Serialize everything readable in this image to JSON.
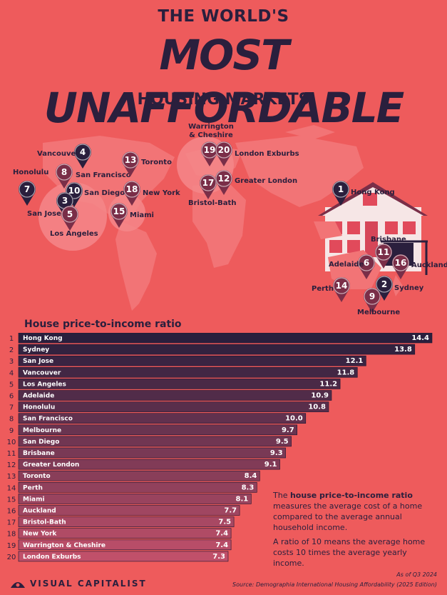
{
  "header": {
    "line1": "THE WORLD'S",
    "line2": "MOST UNAFFORDABLE",
    "line3": "HOUSING MARKETS"
  },
  "map_pins": [
    {
      "rank": "4",
      "label": "Vancouver"
    },
    {
      "rank": "8",
      "label": "San Francisco"
    },
    {
      "rank": "7",
      "label": "Honolulu"
    },
    {
      "rank": "10",
      "label": "San Diego"
    },
    {
      "rank": "3",
      "label": "San Jose"
    },
    {
      "rank": "5",
      "label": "Los Angeles"
    },
    {
      "rank": "13",
      "label": "Toronto"
    },
    {
      "rank": "18",
      "label": "New York"
    },
    {
      "rank": "15",
      "label": "Miami"
    },
    {
      "rank": "19",
      "label": "Warrington & Cheshire"
    },
    {
      "rank": "20",
      "label": "London Exburbs"
    },
    {
      "rank": "17",
      "label": "Bristol-Bath"
    },
    {
      "rank": "12",
      "label": "Greater London"
    },
    {
      "rank": "1",
      "label": "Hong Kong"
    },
    {
      "rank": "11",
      "label": "Brisbane"
    },
    {
      "rank": "6",
      "label": "Adelaide"
    },
    {
      "rank": "16",
      "label": "Auckland"
    },
    {
      "rank": "14",
      "label": "Perth"
    },
    {
      "rank": "2",
      "label": "Sydney"
    },
    {
      "rank": "9",
      "label": "Melbourne"
    }
  ],
  "chart_data": {
    "type": "bar",
    "orientation": "horizontal",
    "title": "House price-to-income ratio",
    "categories": [
      "Hong Kong",
      "Sydney",
      "San Jose",
      "Vancouver",
      "Los Angeles",
      "Adelaide",
      "Honolulu",
      "San Francisco",
      "Melbourne",
      "San Diego",
      "Brisbane",
      "Greater London",
      "Toronto",
      "Perth",
      "Miami",
      "Auckland",
      "Bristol-Bath",
      "New York",
      "Warrington & Cheshire",
      "London Exburbs"
    ],
    "ranks": [
      "1",
      "2",
      "3",
      "4",
      "5",
      "6",
      "7",
      "8",
      "9",
      "10",
      "11",
      "12",
      "13",
      "14",
      "15",
      "16",
      "17",
      "18",
      "19",
      "20"
    ],
    "values": [
      14.4,
      13.8,
      12.1,
      11.8,
      11.2,
      10.9,
      10.8,
      10.0,
      9.7,
      9.5,
      9.3,
      9.1,
      8.4,
      8.3,
      8.1,
      7.7,
      7.5,
      7.4,
      7.4,
      7.3
    ],
    "value_labels": [
      "14.4",
      "13.8",
      "12.1",
      "11.8",
      "11.2",
      "10.9",
      "10.8",
      "10.0",
      "9.7",
      "9.5",
      "9.3",
      "9.1",
      "8.4",
      "8.3",
      "8.1",
      "7.7",
      "7.5",
      "7.4",
      "7.4",
      "7.3"
    ],
    "xlim": [
      0,
      14.4
    ],
    "colors": {
      "dark": "#2a1f3d",
      "light": "#c0506a"
    }
  },
  "notes": {
    "note1_pre": "The ",
    "note1_bold": "house price-to-income ratio",
    "note1_post": " measures the average cost of a home compared to the average annual household income.",
    "note2": "A ratio of 10 means the average home costs 10 times the average yearly income."
  },
  "footer": {
    "brand": "VISUAL CAPITALIST",
    "as_of": "As of Q3 2024",
    "source": "Source: Demographia International Housing Affordability (2025 Edition)"
  },
  "colors": {
    "background": "#ee5b5c",
    "ink": "#2a1f3d",
    "land": "#f27476"
  }
}
